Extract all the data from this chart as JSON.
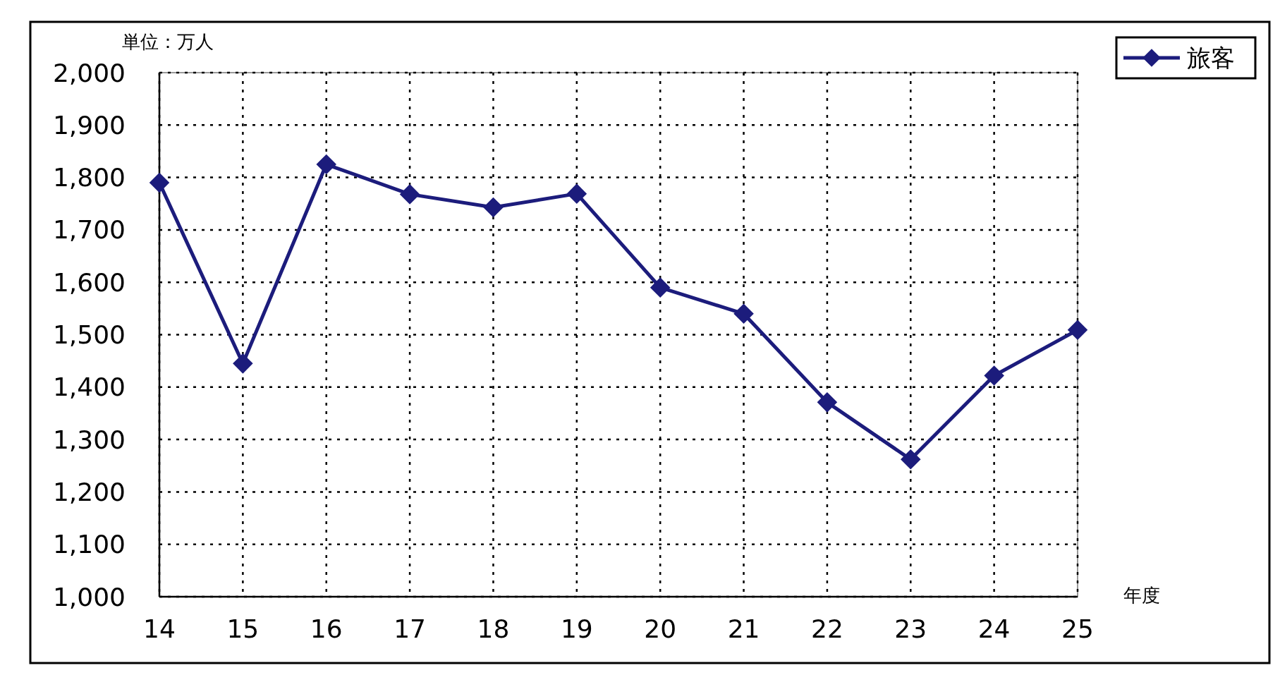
{
  "chart_data": {
    "type": "line",
    "ylabel": "単位：万人",
    "xlabel": "年度",
    "categories": [
      "14",
      "15",
      "16",
      "17",
      "18",
      "19",
      "20",
      "21",
      "22",
      "23",
      "24",
      "25"
    ],
    "series": [
      {
        "name": "旅客",
        "color": "#1c1c7c",
        "values": [
          1790,
          1445,
          1825,
          1768,
          1743,
          1769,
          1590,
          1540,
          1371,
          1262,
          1422,
          1509
        ]
      }
    ],
    "ylim": [
      1000,
      2000
    ],
    "yticks": [
      {
        "value": 1000,
        "label": "1,000"
      },
      {
        "value": 1100,
        "label": "1,100"
      },
      {
        "value": 1200,
        "label": "1,200"
      },
      {
        "value": 1300,
        "label": "1,300"
      },
      {
        "value": 1400,
        "label": "1,400"
      },
      {
        "value": 1500,
        "label": "1,500"
      },
      {
        "value": 1600,
        "label": "1,600"
      },
      {
        "value": 1700,
        "label": "1,700"
      },
      {
        "value": 1800,
        "label": "1,800"
      },
      {
        "value": 1900,
        "label": "1,900"
      },
      {
        "value": 2000,
        "label": "2,000"
      }
    ],
    "grid": true,
    "legend": "top right",
    "marker": "diamond",
    "line_style": "solid"
  }
}
